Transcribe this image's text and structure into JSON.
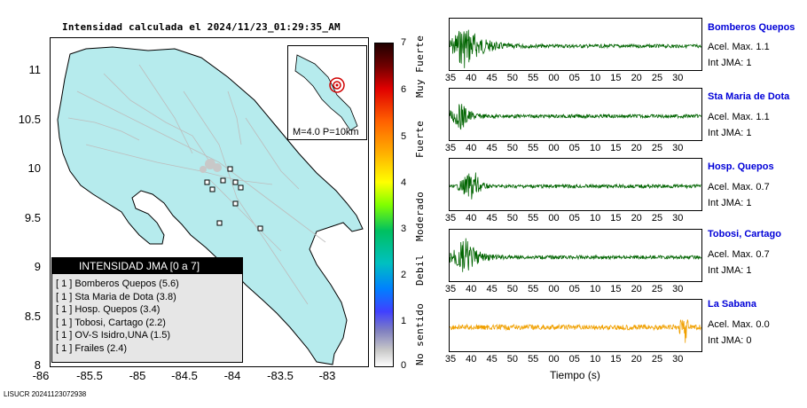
{
  "map": {
    "title": "Intensidad calculada el 2024/11/23_01:29:35_AM",
    "y_ticks": [
      "11",
      "10.5",
      "10",
      "9.5",
      "9",
      "8.5",
      "8"
    ],
    "x_ticks": [
      "-86",
      "-85.5",
      "-85",
      "-84.5",
      "-84",
      "-83.5",
      "-83"
    ],
    "inset_label": "M=4.0 P=10km",
    "land_color": "#b6ebed",
    "road_color": "#bdbdbd"
  },
  "legend": {
    "title": "INTENSIDAD JMA [0 a 7]",
    "rows": [
      "[ 1 ]  Bomberos Quepos (5.6)",
      "[ 1 ]  Sta Maria de Dota (3.8)",
      "[ 1 ]  Hosp. Quepos (3.4)",
      "[ 1 ]  Tobosi, Cartago (2.2)",
      "[ 1 ]  OV-S Isidro,UNA (1.5)",
      "[ 1 ]  Frailes (2.4)"
    ]
  },
  "colorbar": {
    "ticks": [
      "7",
      "6",
      "5",
      "4",
      "3",
      "2",
      "1",
      "0"
    ],
    "labels": [
      "Muy Fuerte",
      "Fuerte",
      "Moderado",
      "Debil",
      "No sentido"
    ]
  },
  "stations": [
    {
      "name": "Bomberos Quepos",
      "acel": "Acel. Max. 1.1",
      "int": "Int JMA: 1",
      "color": "#006400"
    },
    {
      "name": "Sta Maria de Dota",
      "acel": "Acel. Max. 1.1",
      "int": "Int JMA: 1",
      "color": "#006400"
    },
    {
      "name": "Hosp. Quepos",
      "acel": "Acel. Max. 0.7",
      "int": "Int JMA: 1",
      "color": "#006400"
    },
    {
      "name": "Tobosi, Cartago",
      "acel": "Acel. Max. 0.7",
      "int": "Int JMA: 1",
      "color": "#006400"
    },
    {
      "name": "La Sabana",
      "acel": "Acel. Max. 0.0",
      "int": "Int JMA: 0",
      "color": "#f0a000"
    }
  ],
  "time_axes": [
    [
      "35",
      "40",
      "45",
      "50",
      "55",
      "00",
      "05",
      "10",
      "15",
      "20",
      "25",
      "30"
    ],
    [
      "35",
      "40",
      "45",
      "50",
      "55",
      "00",
      "05",
      "10",
      "15",
      "20",
      "25",
      "30"
    ],
    [
      "35",
      "40",
      "45",
      "50",
      "55",
      "00",
      "05",
      "10",
      "15",
      "20",
      "25",
      "30"
    ],
    [
      "35",
      "40",
      "45",
      "50",
      "55",
      "00",
      "05",
      "10",
      "15",
      "20",
      "25",
      "30"
    ],
    [
      "35",
      "40",
      "45",
      "50",
      "55",
      "00",
      "05",
      "10",
      "15",
      "20",
      "25",
      "30"
    ]
  ],
  "time_label": "Tiempo (s)",
  "footer": "LISUCR 20241123072938"
}
